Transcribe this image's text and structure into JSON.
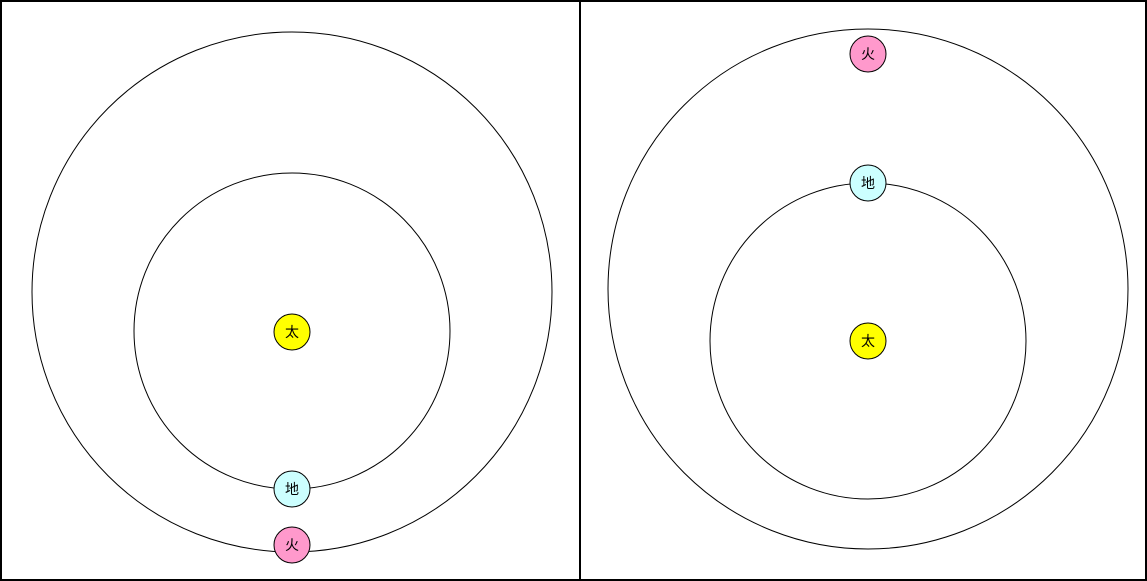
{
  "colors": {
    "background": "#ffffff",
    "line": "#000000",
    "sun": "#ffff00",
    "earth": "#ccffff",
    "mars": "#ff99cc"
  },
  "bodies": {
    "sun": "太",
    "earth": "地",
    "mars": "火"
  },
  "panels": [
    {
      "id": "left",
      "earth_position": "bottom",
      "mars_position": "bottom"
    },
    {
      "id": "right",
      "earth_position": "top",
      "mars_position": "top"
    }
  ]
}
